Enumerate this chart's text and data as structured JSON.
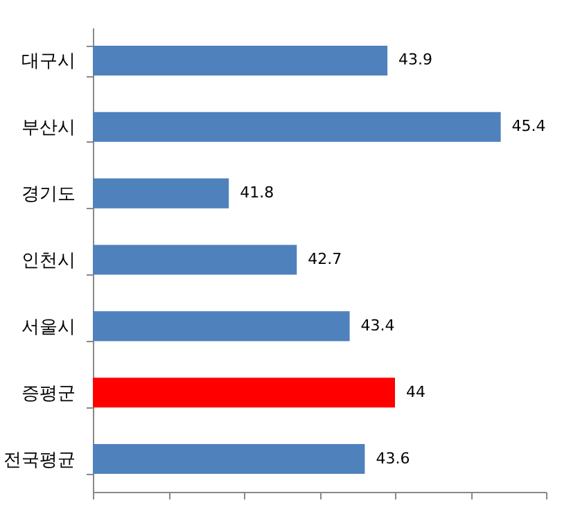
{
  "chart_data": {
    "type": "bar",
    "orientation": "horizontal",
    "categories": [
      "대구시",
      "부산시",
      "경기도",
      "인천시",
      "서울시",
      "증평군",
      "전국평균"
    ],
    "values": [
      43.9,
      45.4,
      41.8,
      42.7,
      43.4,
      44,
      43.6
    ],
    "colors": [
      "#4f81bd",
      "#4f81bd",
      "#4f81bd",
      "#4f81bd",
      "#4f81bd",
      "#ff0000",
      "#4f81bd"
    ],
    "xlim": [
      40,
      46
    ],
    "xticks": [
      {
        "value": 40,
        "label": null
      },
      {
        "value": 41,
        "label": null
      },
      {
        "value": 42,
        "label": null
      },
      {
        "value": 43,
        "label": null
      },
      {
        "value": 44,
        "label": null
      },
      {
        "value": 45,
        "label": null
      },
      {
        "value": 46,
        "label": null
      }
    ],
    "data_labels": true,
    "grid": false
  }
}
